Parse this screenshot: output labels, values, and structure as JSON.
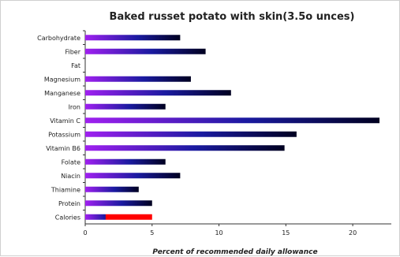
{
  "chart_data": {
    "type": "bar",
    "orientation": "horizontal",
    "title": "Baked russet potato with skin(3.5o unces)",
    "xlabel": "Percent of recommended daily allowance",
    "ylabel": "",
    "categories": [
      "Carbohydrate",
      "Fiber",
      "Fat",
      "Magnesium",
      "Manganese",
      "Iron",
      "Vitamin C",
      "Potassium",
      "Vitamin B6",
      "Folate",
      "Niacin",
      "Thiamine",
      "Protein",
      "Calories"
    ],
    "values": [
      7.1,
      9.0,
      0,
      7.9,
      10.9,
      6.0,
      22.0,
      15.8,
      14.9,
      6.0,
      7.1,
      4.0,
      5.0,
      5.0
    ],
    "xlim": [
      0,
      22
    ],
    "xticks": [
      0,
      5,
      10,
      15,
      20
    ],
    "grid": false,
    "legend": "none",
    "colors": {
      "gradient_start": "#a020f0",
      "gradient_mid": "#1a1aa0",
      "gradient_end": "#000020",
      "highlight": "#ff0000",
      "axis": "#333333"
    }
  }
}
